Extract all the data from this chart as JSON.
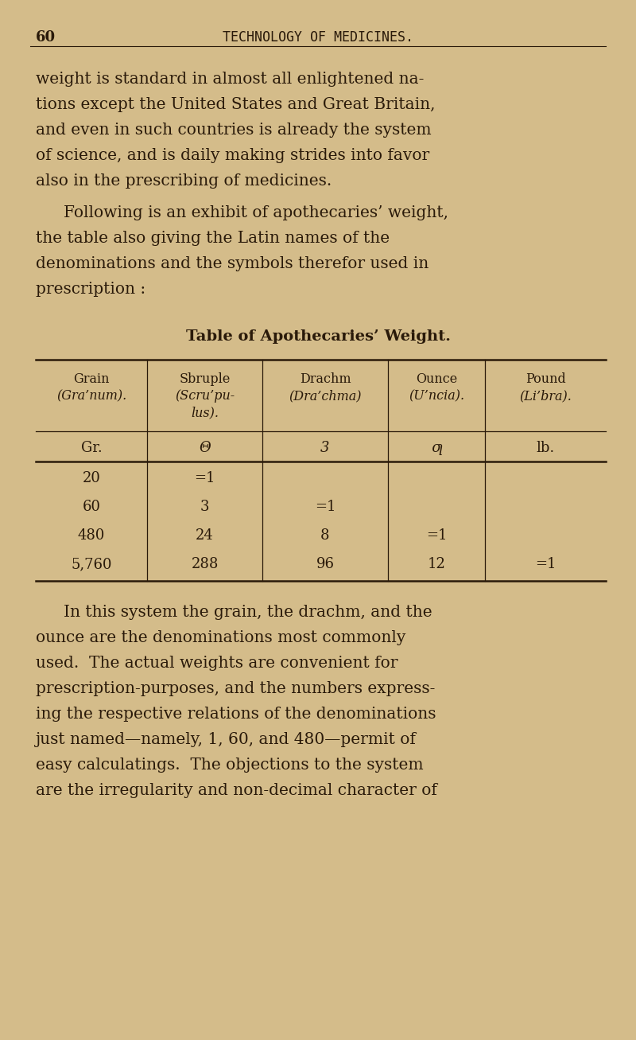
{
  "bg_color": "#d4bc8a",
  "text_color": "#2a1a0a",
  "page_number": "60",
  "header": "TECHNOLOGY OF MEDICINES.",
  "para1": "weight is standard in almost all enlightened na-\ntions except the United States and Great Britain,\nand even in such countries is already the system\nof science, and is daily making strides into favor\nalso in the prescribing of medicines.",
  "para2_indent": "Following is an exhibit of apothecaries’ weight,\nthe table also giving the Latin names of the\ndenominations and the symbols therefor used in\nprescription :",
  "table_title": "Table of Apothecaries’ Weight.",
  "col_headers": [
    [
      "Grain",
      "(Gra’num)."
    ],
    [
      "Sbruple",
      "(Scru’pu-",
      "lus)."
    ],
    [
      "Drachm",
      "(Dra’chma)"
    ],
    [
      "Ounce",
      "(U’ncia)."
    ],
    [
      "Pound",
      "(Li’bra)."
    ]
  ],
  "col_symbols": [
    "Gr.",
    "Θ",
    "3",
    "ƣ",
    "lb."
  ],
  "table_data": [
    [
      "20",
      "=1",
      "",
      "",
      ""
    ],
    [
      "60",
      "3",
      "=1",
      "",
      ""
    ],
    [
      "480",
      "24",
      "8",
      "=1",
      ""
    ],
    [
      "5,760",
      "288",
      "96",
      "12",
      "=1"
    ]
  ],
  "para3_indent": "In this system the grain, the drachm, and the\nounce are the denominations most commonly\nused.  The actual weights are convenient for\nprescription-purposes, and the numbers express-\ning the respective relations of the denominations\njust named—namely, 1, 60, and 480—permit of\neasy calculatings.  The objections to the system\nare the irregularity and non-decimal character of",
  "font_size_header": 11,
  "font_size_body": 13,
  "font_size_table_title": 13,
  "font_size_table_body": 12
}
